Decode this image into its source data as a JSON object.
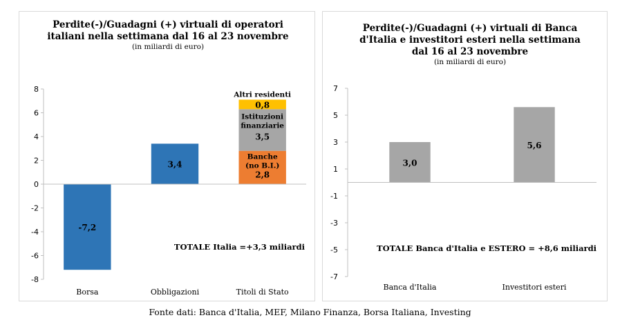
{
  "source": "Fonte dati: Banca d'Italia, MEF, Milano Finanza, Borsa Italiana, Investing",
  "colors": {
    "blue": "#2e75b6",
    "orange": "#ed7d31",
    "gray": "#a6a6a6",
    "yellow": "#ffc000"
  },
  "chart_data": [
    {
      "type": "bar",
      "title_lines": [
        "Perdite(-)/Guadagni (+) virtuali di operatori",
        "italiani nella settimana dal 16 al 23  novembre"
      ],
      "subtitle": "(in miliardi di euro)",
      "ylim": [
        -8,
        8
      ],
      "yticks": [
        8,
        6,
        4,
        2,
        0,
        -2,
        -4,
        -6,
        -8
      ],
      "categories": [
        "Borsa",
        "Obbligazioni",
        "Titoli di Stato"
      ],
      "bars": [
        {
          "category": "Borsa",
          "value": -7.2,
          "label": "-7,2",
          "color": "#2e75b6"
        },
        {
          "category": "Obbligazioni",
          "value": 3.4,
          "label": "3,4",
          "color": "#2e75b6"
        }
      ],
      "stack": {
        "category": "Titoli di Stato",
        "segments": [
          {
            "name_lines": [
              "Banche",
              "(no B.I.)"
            ],
            "value": 2.8,
            "label": "2,8",
            "color": "#ed7d31"
          },
          {
            "name_lines": [
              "Istituzioni",
              "finanziarie"
            ],
            "value": 3.5,
            "label": "3,5",
            "color": "#a6a6a6"
          },
          {
            "name_lines": [
              "Altri residenti"
            ],
            "value": 0.8,
            "label": "0,8",
            "color": "#ffc000"
          }
        ]
      },
      "annotation": "TOTALE  Italia =+3,3 miliardi"
    },
    {
      "type": "bar",
      "title_lines": [
        "Perdite(-)/Guadagni (+)  virtuali di Banca",
        "d'Italia e investitori esteri  nella settimana",
        "dal 16 al 23  novembre"
      ],
      "subtitle": "(in miliardi di euro)",
      "ylim": [
        -7,
        7
      ],
      "yticks": [
        7,
        5,
        3,
        1,
        -1,
        -3,
        -5,
        -7
      ],
      "categories": [
        "Banca d'Italia",
        "Investitori esteri"
      ],
      "bars": [
        {
          "category": "Banca d'Italia",
          "value": 3.0,
          "label": "3,0",
          "color": "#a6a6a6"
        },
        {
          "category": "Investitori esteri",
          "value": 5.6,
          "label": "5,6",
          "color": "#a6a6a6"
        }
      ],
      "annotation": "TOTALE  Banca d'Italia e ESTERO = +8,6 miliardi"
    }
  ]
}
